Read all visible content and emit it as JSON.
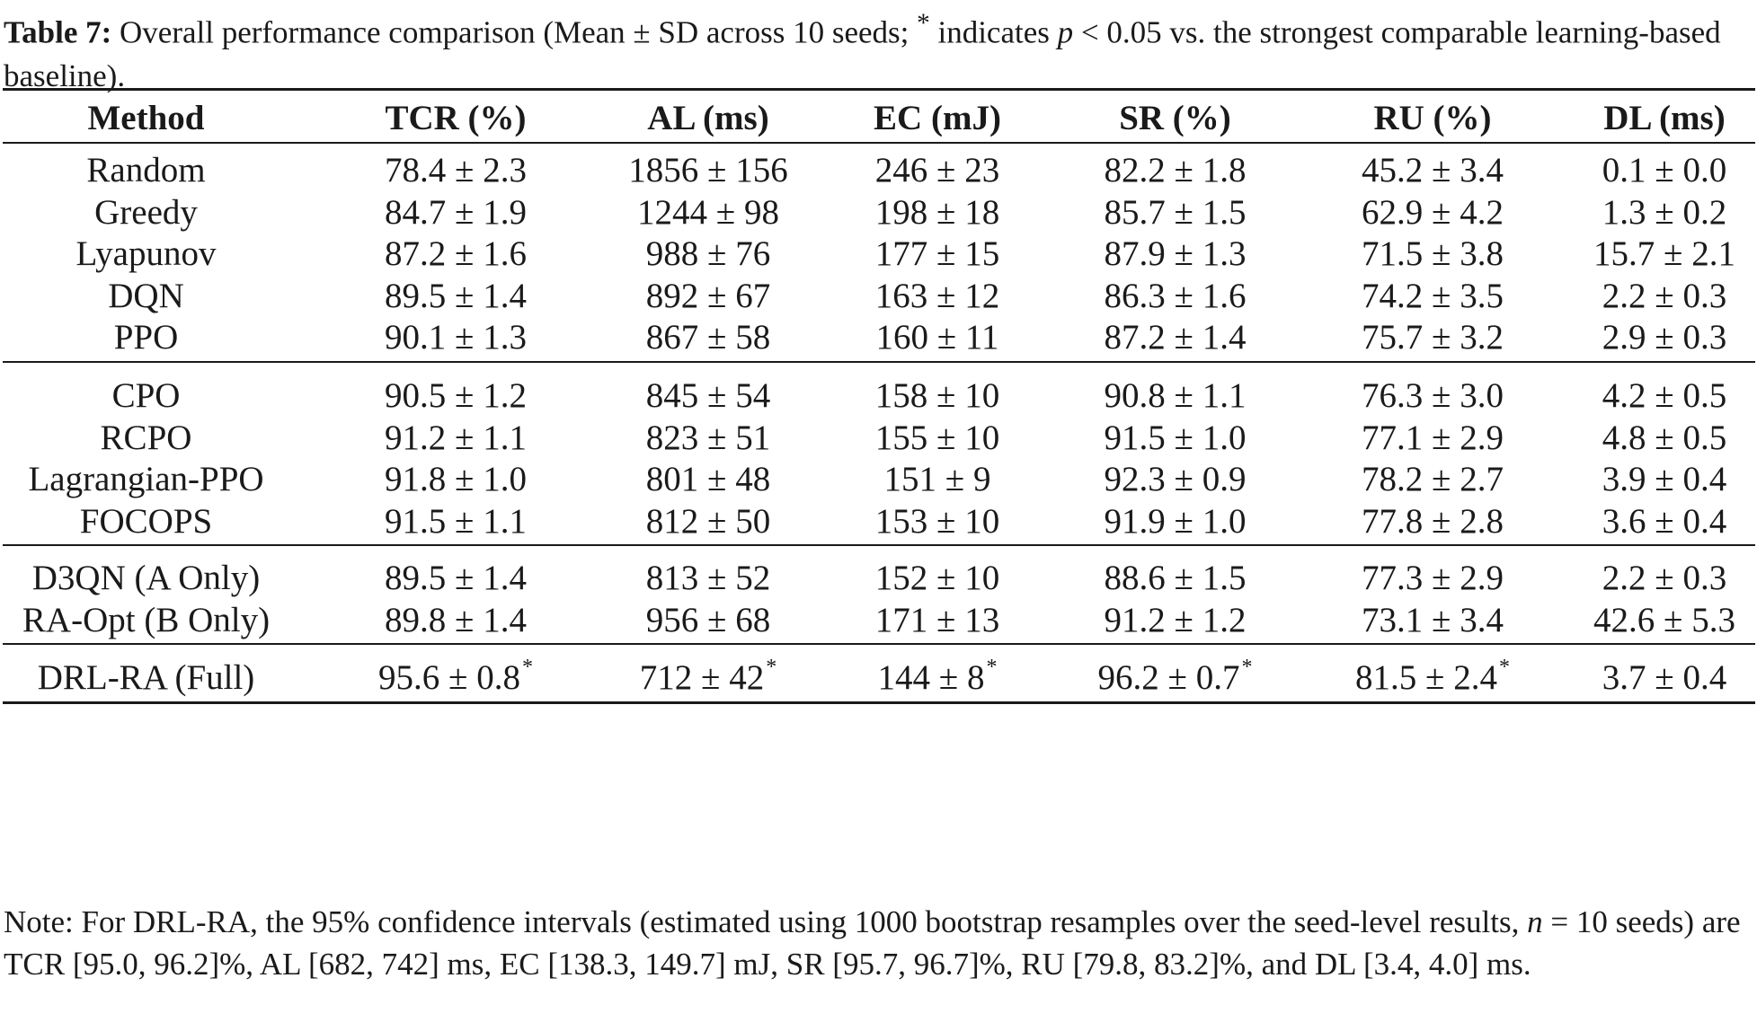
{
  "caption": {
    "label": "Table 7:",
    "text_part1": " Overall performance comparison (Mean ± SD across 10 seeds; ",
    "star": "*",
    "text_part2": " indicates ",
    "p_symbol": "p",
    "text_part3": " < 0.05 vs. the strongest comparable learning-based baseline)."
  },
  "table": {
    "headers": [
      "Method",
      "TCR (%)",
      "AL (ms)",
      "EC (mJ)",
      "SR (%)",
      "RU (%)",
      "DL (ms)"
    ],
    "groups": [
      [
        [
          "Random",
          "78.4 ± 2.3",
          "1856 ± 156",
          "246 ± 23",
          "82.2 ± 1.8",
          "45.2 ± 3.4",
          "0.1 ± 0.0"
        ],
        [
          "Greedy",
          "84.7 ± 1.9",
          "1244 ± 98",
          "198 ± 18",
          "85.7 ± 1.5",
          "62.9 ± 4.2",
          "1.3 ± 0.2"
        ],
        [
          "Lyapunov",
          "87.2 ± 1.6",
          "988 ± 76",
          "177 ± 15",
          "87.9 ± 1.3",
          "71.5 ± 3.8",
          "15.7 ± 2.1"
        ],
        [
          "DQN",
          "89.5 ± 1.4",
          "892 ± 67",
          "163 ± 12",
          "86.3 ± 1.6",
          "74.2 ± 3.5",
          "2.2 ± 0.3"
        ],
        [
          "PPO",
          "90.1 ± 1.3",
          "867 ± 58",
          "160 ± 11",
          "87.2 ± 1.4",
          "75.7 ± 3.2",
          "2.9 ± 0.3"
        ]
      ],
      [
        [
          "CPO",
          "90.5 ± 1.2",
          "845 ± 54",
          "158 ± 10",
          "90.8 ± 1.1",
          "76.3 ± 3.0",
          "4.2 ± 0.5"
        ],
        [
          "RCPO",
          "91.2 ± 1.1",
          "823 ± 51",
          "155 ± 10",
          "91.5 ± 1.0",
          "77.1 ± 2.9",
          "4.8 ± 0.5"
        ],
        [
          "Lagrangian-PPO",
          "91.8 ± 1.0",
          "801 ± 48",
          "151 ± 9",
          "92.3 ± 0.9",
          "78.2 ± 2.7",
          "3.9 ± 0.4"
        ],
        [
          "FOCOPS",
          "91.5 ± 1.1",
          "812 ± 50",
          "153 ± 10",
          "91.9 ± 1.0",
          "77.8 ± 2.8",
          "3.6 ± 0.4"
        ]
      ],
      [
        [
          "D3QN (A Only)",
          "89.5 ± 1.4",
          "813 ± 52",
          "152 ± 10",
          "88.6 ± 1.5",
          "77.3 ± 2.9",
          "2.2 ± 0.3"
        ],
        [
          "RA-Opt (B Only)",
          "89.8 ± 1.4",
          "956 ± 68",
          "171 ± 13",
          "91.2 ± 1.2",
          "73.1 ± 3.4",
          "42.6 ± 5.3"
        ]
      ]
    ],
    "final_row": {
      "method": "DRL-RA (Full)",
      "values": [
        "95.6 ± 0.8",
        "712 ± 42",
        "144 ± 8",
        "96.2 ± 0.7",
        "81.5 ± 2.4",
        "3.7 ± 0.4"
      ],
      "significant": [
        true,
        true,
        true,
        true,
        true,
        false
      ],
      "star": "*"
    }
  },
  "note": {
    "text_part1": "Note: For DRL-RA, the 95% confidence intervals (estimated using 1000 bootstrap resamples over the seed-level results, ",
    "n_symbol": "n",
    "text_part2": " = 10 seeds) are TCR [95.0, 96.2]%, AL [682, 742] ms, EC [138.3, 149.7] mJ, SR [95.7, 96.7]%, RU [79.8, 83.2]%, and DL [3.4, 4.0] ms."
  }
}
